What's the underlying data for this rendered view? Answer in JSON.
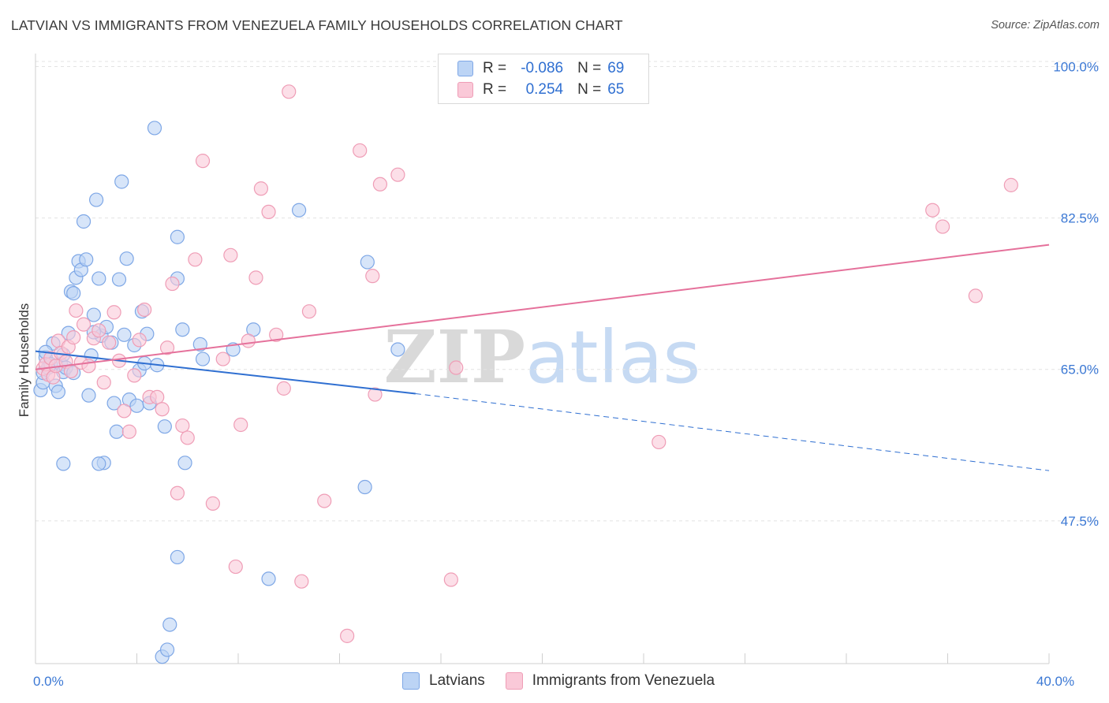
{
  "header": {
    "title": "LATVIAN VS IMMIGRANTS FROM VENEZUELA FAMILY HOUSEHOLDS CORRELATION CHART",
    "source": "Source: ZipAtlas.com"
  },
  "watermark": {
    "part1": "ZIP",
    "part2": "atlas"
  },
  "stats_legend": {
    "rows": [
      {
        "r_label": "R =",
        "r_value": "-0.086",
        "n_label": "N =",
        "n_value": "69"
      },
      {
        "r_label": "R =",
        "r_value": "0.254",
        "n_label": "N =",
        "n_value": "65"
      }
    ]
  },
  "bottom_legend": {
    "series1": "Latvians",
    "series2": "Immigrants from Venezuela"
  },
  "colors": {
    "blue_fill": "#bcd4f5",
    "blue_stroke": "#7ea7e6",
    "blue_line": "#2f6fd1",
    "pink_fill": "#fac9d8",
    "pink_stroke": "#ef9db6",
    "pink_line": "#e5719b",
    "tick_label": "#3b78d4",
    "grid": "#e3e3e3"
  },
  "chart_data": {
    "type": "scatter",
    "title": "LATVIAN VS IMMIGRANTS FROM VENEZUELA FAMILY HOUSEHOLDS CORRELATION CHART",
    "xlabel": "",
    "ylabel": "Family Households",
    "xlim": [
      0,
      40
    ],
    "ylim": [
      31,
      101.5
    ],
    "x_tick_labels": [
      {
        "value": 0,
        "label": "0.0%"
      },
      {
        "value": 40,
        "label": "40.0%"
      }
    ],
    "y_tick_labels": [
      {
        "value": 100,
        "label": "100.0%"
      },
      {
        "value": 82.5,
        "label": "82.5%"
      },
      {
        "value": 65,
        "label": "65.0%"
      },
      {
        "value": 47.5,
        "label": "47.5%"
      }
    ],
    "x_minor_ticks": [
      0,
      4,
      8,
      12,
      16,
      20,
      24,
      28,
      32,
      36,
      40
    ],
    "series": [
      {
        "name": "Latvians",
        "r": -0.086,
        "n": 69,
        "trend": {
          "x0": 0,
          "y0": 67.1,
          "x1": 15,
          "y1": 62.2,
          "dashed_to_x": 40,
          "dashed_to_y": 53.3
        },
        "points": [
          [
            0.2,
            62.6
          ],
          [
            0.3,
            63.5
          ],
          [
            0.3,
            64.6
          ],
          [
            0.4,
            66.4
          ],
          [
            0.5,
            65.2
          ],
          [
            0.6,
            65.6
          ],
          [
            0.7,
            68.0
          ],
          [
            0.8,
            63.1
          ],
          [
            0.9,
            62.4
          ],
          [
            1.0,
            65.6
          ],
          [
            1.1,
            64.7
          ],
          [
            1.1,
            66.7
          ],
          [
            1.2,
            65.2
          ],
          [
            1.3,
            69.2
          ],
          [
            1.4,
            74.0
          ],
          [
            1.5,
            64.6
          ],
          [
            1.6,
            75.6
          ],
          [
            1.7,
            77.5
          ],
          [
            1.8,
            76.5
          ],
          [
            1.9,
            82.1
          ],
          [
            2.0,
            77.7
          ],
          [
            2.1,
            62.0
          ],
          [
            2.2,
            66.6
          ],
          [
            2.3,
            71.3
          ],
          [
            2.4,
            84.6
          ],
          [
            2.5,
            75.5
          ],
          [
            2.6,
            68.9
          ],
          [
            2.8,
            69.9
          ],
          [
            2.7,
            54.2
          ],
          [
            3.0,
            68.1
          ],
          [
            3.1,
            61.1
          ],
          [
            3.2,
            57.8
          ],
          [
            3.3,
            75.4
          ],
          [
            3.4,
            86.7
          ],
          [
            3.5,
            69.0
          ],
          [
            3.6,
            77.8
          ],
          [
            3.7,
            61.5
          ],
          [
            3.9,
            67.8
          ],
          [
            4.0,
            60.8
          ],
          [
            4.1,
            64.9
          ],
          [
            4.2,
            71.7
          ],
          [
            4.3,
            65.7
          ],
          [
            4.4,
            69.1
          ],
          [
            4.5,
            61.1
          ],
          [
            4.7,
            92.9
          ],
          [
            4.8,
            65.5
          ],
          [
            5.0,
            31.8
          ],
          [
            5.1,
            58.4
          ],
          [
            5.2,
            32.6
          ],
          [
            5.3,
            35.5
          ],
          [
            5.6,
            43.3
          ],
          [
            5.8,
            69.6
          ],
          [
            5.9,
            54.2
          ],
          [
            6.5,
            67.9
          ],
          [
            6.6,
            66.2
          ],
          [
            7.8,
            67.3
          ],
          [
            8.6,
            69.6
          ],
          [
            10.4,
            83.4
          ],
          [
            13.0,
            51.4
          ],
          [
            13.1,
            77.4
          ],
          [
            14.3,
            67.3
          ],
          [
            9.2,
            40.8
          ],
          [
            5.6,
            80.3
          ],
          [
            2.5,
            54.1
          ],
          [
            1.1,
            54.1
          ],
          [
            5.6,
            75.5
          ],
          [
            1.5,
            73.8
          ],
          [
            2.3,
            69.3
          ],
          [
            0.4,
            67.0
          ]
        ]
      },
      {
        "name": "Immigrants from Venezuela",
        "r": 0.254,
        "n": 65,
        "trend": {
          "x0": 0,
          "y0": 65.0,
          "x1": 40,
          "y1": 79.4
        },
        "points": [
          [
            0.3,
            65.1
          ],
          [
            0.4,
            65.6
          ],
          [
            0.5,
            64.4
          ],
          [
            0.6,
            66.3
          ],
          [
            0.7,
            64.1
          ],
          [
            0.8,
            65.4
          ],
          [
            0.9,
            68.3
          ],
          [
            1.0,
            66.9
          ],
          [
            1.2,
            65.9
          ],
          [
            1.3,
            67.6
          ],
          [
            1.4,
            64.8
          ],
          [
            1.5,
            68.7
          ],
          [
            1.6,
            71.8
          ],
          [
            1.8,
            65.8
          ],
          [
            1.9,
            70.2
          ],
          [
            2.1,
            65.4
          ],
          [
            2.3,
            68.6
          ],
          [
            2.5,
            69.5
          ],
          [
            2.7,
            63.5
          ],
          [
            2.9,
            68.1
          ],
          [
            3.1,
            71.6
          ],
          [
            3.3,
            66.0
          ],
          [
            3.5,
            60.2
          ],
          [
            3.7,
            57.8
          ],
          [
            3.9,
            64.3
          ],
          [
            4.1,
            68.4
          ],
          [
            4.3,
            71.9
          ],
          [
            4.5,
            61.8
          ],
          [
            4.8,
            61.8
          ],
          [
            5.0,
            60.4
          ],
          [
            5.2,
            67.5
          ],
          [
            5.4,
            74.9
          ],
          [
            5.6,
            50.7
          ],
          [
            5.8,
            58.5
          ],
          [
            6.0,
            57.1
          ],
          [
            6.3,
            77.7
          ],
          [
            6.6,
            89.1
          ],
          [
            7.0,
            49.5
          ],
          [
            7.4,
            66.2
          ],
          [
            7.7,
            78.2
          ],
          [
            7.9,
            42.2
          ],
          [
            8.1,
            58.6
          ],
          [
            8.4,
            68.3
          ],
          [
            8.7,
            75.6
          ],
          [
            8.9,
            85.9
          ],
          [
            9.2,
            83.2
          ],
          [
            9.5,
            69.0
          ],
          [
            9.8,
            62.8
          ],
          [
            10.0,
            97.1
          ],
          [
            10.5,
            40.5
          ],
          [
            10.8,
            71.7
          ],
          [
            11.4,
            49.8
          ],
          [
            12.3,
            34.2
          ],
          [
            12.8,
            90.3
          ],
          [
            13.3,
            75.8
          ],
          [
            13.4,
            62.1
          ],
          [
            13.6,
            86.4
          ],
          [
            14.3,
            87.5
          ],
          [
            16.4,
            40.7
          ],
          [
            16.6,
            65.2
          ],
          [
            24.6,
            56.6
          ],
          [
            35.4,
            83.4
          ],
          [
            35.8,
            81.5
          ],
          [
            37.1,
            73.5
          ],
          [
            38.5,
            86.3
          ]
        ]
      }
    ]
  }
}
